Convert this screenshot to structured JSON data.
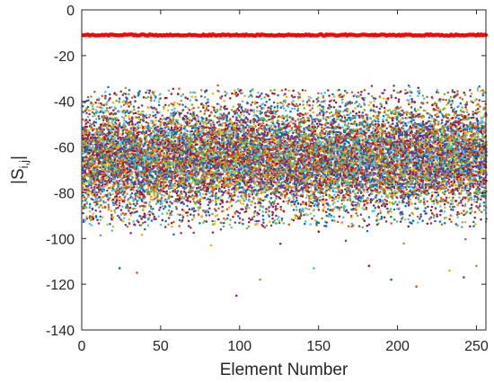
{
  "chart_data": {
    "type": "scatter",
    "xlabel": "Element Number",
    "ylabel": {
      "base": "|S",
      "sub": "i,j",
      "tail": "|"
    },
    "xlim": [
      0,
      256
    ],
    "ylim": [
      -140,
      0
    ],
    "xticks": [
      0,
      50,
      100,
      150,
      200,
      250
    ],
    "yticks": [
      0,
      -20,
      -40,
      -60,
      -80,
      -100,
      -120,
      -140
    ],
    "grid": false,
    "legend": "none",
    "series": [
      {
        "role": "diagonal",
        "color": "#ff0000",
        "description_values": {
          "y_mean": -11,
          "y_jitter": 0.3
        },
        "x": {
          "start": 1,
          "end": 256,
          "step": 1
        }
      },
      {
        "role": "off-diagonal",
        "colors": [
          "#0072bd",
          "#d95319",
          "#edb120",
          "#7e2f8e",
          "#77ac30",
          "#4dbeee",
          "#a2142f"
        ],
        "y_band": [
          -95,
          -35
        ],
        "y_dense_center": -65,
        "outliers_y": [
          [
            24,
            -113
          ],
          [
            35,
            -115
          ],
          [
            82,
            -103
          ],
          [
            98,
            -125
          ],
          [
            113,
            -118
          ],
          [
            147,
            -113
          ],
          [
            182,
            -112
          ],
          [
            196,
            -118
          ],
          [
            212,
            -121
          ],
          [
            233,
            -114
          ],
          [
            242,
            -117
          ],
          [
            250,
            -112
          ]
        ],
        "x": {
          "start": 1,
          "end": 256,
          "step": 1
        }
      }
    ]
  }
}
